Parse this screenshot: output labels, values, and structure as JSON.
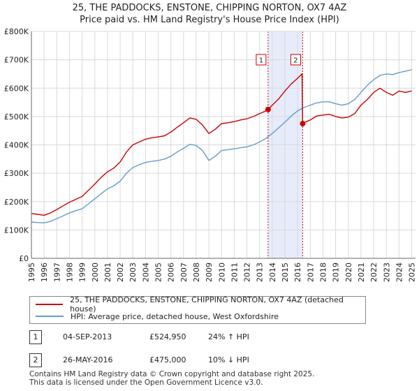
{
  "chart_data": {
    "type": "line",
    "title": "25, THE PADDOCKS, ENSTONE, CHIPPING NORTON, OX7 4AZ",
    "subtitle": "Price paid vs. HM Land Registry's House Price Index (HPI)",
    "xlim": [
      1995,
      2025.3
    ],
    "ylim": [
      0,
      800000
    ],
    "x_ticks": [
      "1995",
      "1996",
      "1997",
      "1998",
      "1999",
      "2000",
      "2001",
      "2002",
      "2003",
      "2004",
      "2005",
      "2006",
      "2007",
      "2008",
      "2009",
      "2010",
      "2011",
      "2012",
      "2013",
      "2014",
      "2015",
      "2016",
      "2017",
      "2018",
      "2019",
      "2020",
      "2021",
      "2022",
      "2023",
      "2024",
      "2025"
    ],
    "y_ticks": [
      {
        "value": 0,
        "label": "£0"
      },
      {
        "value": 100000,
        "label": "£100K"
      },
      {
        "value": 200000,
        "label": "£200K"
      },
      {
        "value": 300000,
        "label": "£300K"
      },
      {
        "value": 400000,
        "label": "£400K"
      },
      {
        "value": 500000,
        "label": "£500K"
      },
      {
        "value": 600000,
        "label": "£600K"
      },
      {
        "value": 700000,
        "label": "£700K"
      },
      {
        "value": 800000,
        "label": "£800K"
      }
    ],
    "grid": true,
    "shaded_span": [
      2013.67,
      2016.4
    ],
    "series": [
      {
        "name": "25, THE PADDOCKS, ENSTONE, CHIPPING NORTON, OX7 4AZ (detached house)",
        "color": "#cc0000",
        "x": [
          1995.0,
          1995.5,
          1996.0,
          1996.5,
          1997.0,
          1997.5,
          1998.0,
          1998.5,
          1999.0,
          1999.5,
          2000.0,
          2000.5,
          2001.0,
          2001.5,
          2002.0,
          2002.5,
          2003.0,
          2003.5,
          2004.0,
          2004.5,
          2005.0,
          2005.5,
          2006.0,
          2006.5,
          2007.0,
          2007.5,
          2008.0,
          2008.5,
          2009.0,
          2009.5,
          2010.0,
          2010.5,
          2011.0,
          2011.5,
          2012.0,
          2012.5,
          2013.0,
          2013.5,
          2013.67,
          2014.0,
          2014.5,
          2015.0,
          2015.5,
          2016.0,
          2016.35,
          2016.4,
          2016.5,
          2017.0,
          2017.5,
          2018.0,
          2018.5,
          2019.0,
          2019.5,
          2020.0,
          2020.5,
          2021.0,
          2021.5,
          2022.0,
          2022.5,
          2023.0,
          2023.5,
          2024.0,
          2024.5,
          2025.0
        ],
        "values": [
          158000,
          155000,
          152000,
          160000,
          172000,
          185000,
          198000,
          208000,
          218000,
          240000,
          262000,
          285000,
          305000,
          318000,
          340000,
          375000,
          400000,
          410000,
          420000,
          425000,
          428000,
          432000,
          445000,
          462000,
          478000,
          495000,
          490000,
          470000,
          440000,
          455000,
          475000,
          478000,
          482000,
          488000,
          492000,
          500000,
          510000,
          520000,
          524950,
          540000,
          562000,
          590000,
          615000,
          635000,
          650000,
          475000,
          478000,
          488000,
          502000,
          505000,
          508000,
          500000,
          495000,
          498000,
          510000,
          540000,
          560000,
          585000,
          600000,
          585000,
          575000,
          590000,
          585000,
          590000
        ]
      },
      {
        "name": "HPI: Average price, detached house, West Oxfordshire",
        "color": "#6699cc",
        "x": [
          1995.0,
          1995.5,
          1996.0,
          1996.5,
          1997.0,
          1997.5,
          1998.0,
          1998.5,
          1999.0,
          1999.5,
          2000.0,
          2000.5,
          2001.0,
          2001.5,
          2002.0,
          2002.5,
          2003.0,
          2003.5,
          2004.0,
          2004.5,
          2005.0,
          2005.5,
          2006.0,
          2006.5,
          2007.0,
          2007.5,
          2008.0,
          2008.5,
          2009.0,
          2009.5,
          2010.0,
          2010.5,
          2011.0,
          2011.5,
          2012.0,
          2012.5,
          2013.0,
          2013.5,
          2014.0,
          2014.5,
          2015.0,
          2015.5,
          2016.0,
          2016.5,
          2017.0,
          2017.5,
          2018.0,
          2018.5,
          2019.0,
          2019.5,
          2020.0,
          2020.5,
          2021.0,
          2021.5,
          2022.0,
          2022.5,
          2023.0,
          2023.5,
          2024.0,
          2024.5,
          2025.0
        ],
        "values": [
          128000,
          126000,
          125000,
          130000,
          140000,
          150000,
          160000,
          168000,
          175000,
          192000,
          210000,
          228000,
          245000,
          256000,
          272000,
          300000,
          320000,
          330000,
          338000,
          342000,
          345000,
          350000,
          360000,
          375000,
          388000,
          402000,
          398000,
          380000,
          345000,
          360000,
          380000,
          383000,
          386000,
          390000,
          393000,
          400000,
          410000,
          423000,
          440000,
          460000,
          480000,
          502000,
          520000,
          532000,
          540000,
          548000,
          552000,
          552000,
          545000,
          540000,
          545000,
          560000,
          585000,
          610000,
          630000,
          645000,
          650000,
          648000,
          655000,
          660000,
          665000
        ]
      }
    ],
    "annotations": [
      {
        "label": "1",
        "x": 2013.67,
        "y": 524950
      },
      {
        "label": "2",
        "x": 2016.4,
        "y": 475000
      }
    ]
  },
  "legend": {
    "items": [
      {
        "label": "25, THE PADDOCKS, ENSTONE, CHIPPING NORTON, OX7 4AZ (detached house)",
        "color": "#cc0000"
      },
      {
        "label": "HPI: Average price, detached house, West Oxfordshire",
        "color": "#6699cc"
      }
    ]
  },
  "transactions": [
    {
      "num": "1",
      "date": "04-SEP-2013",
      "price": "£524,950",
      "hpi": "24% ↑ HPI"
    },
    {
      "num": "2",
      "date": "26-MAY-2016",
      "price": "£475,000",
      "hpi": "10% ↓ HPI"
    }
  ],
  "footer": {
    "line1": "Contains HM Land Registry data © Crown copyright and database right 2025.",
    "line2": "This data is licensed under the Open Government Licence v3.0."
  }
}
